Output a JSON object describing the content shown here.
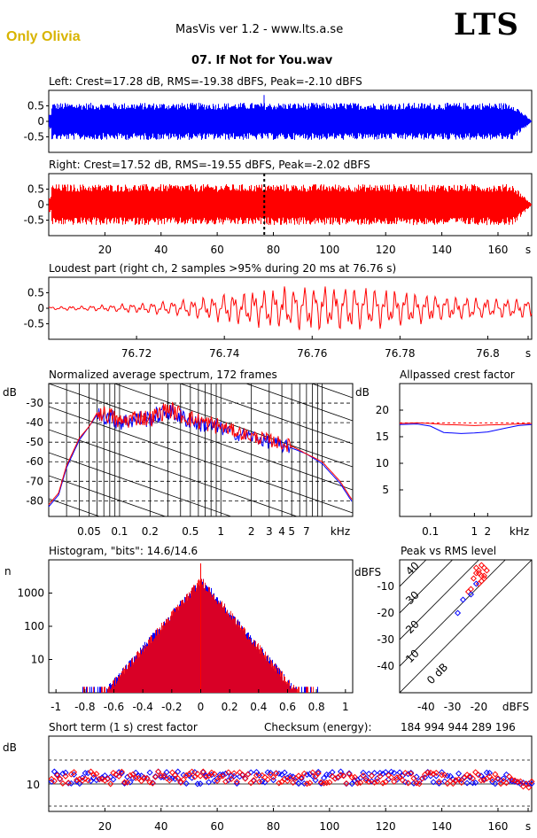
{
  "header": {
    "profile_label": "Only Olivia",
    "app_title": "MasVis ver 1.2 - www.lts.a.se",
    "logo_text": "LTS",
    "track_title": "07. If Not for You.wav"
  },
  "colors": {
    "left": "#0000ff",
    "right": "#ff0000",
    "grid": "#000000",
    "logo_yellow": "#d8b400"
  },
  "chart_data": [
    {
      "id": "left-waveform",
      "type": "line",
      "title": "Left: Crest=17.28 dB, RMS=-19.38 dBFS, Peak=-2.10 dBFS",
      "yticks": [
        "0.5",
        "0",
        "-0.5"
      ],
      "ylim": [
        -1,
        1
      ],
      "xlim": [
        0,
        172
      ],
      "series": [
        {
          "color": "#0000ff",
          "amplitude_envelope": 0.5,
          "peak": 0.78
        }
      ]
    },
    {
      "id": "right-waveform",
      "type": "line",
      "title": "Right: Crest=17.52 dB, RMS=-19.55 dBFS, Peak=-2.02 dBFS",
      "yticks": [
        "0.5",
        "0",
        "-0.5"
      ],
      "ylim": [
        -1,
        1
      ],
      "xlim": [
        0,
        172
      ],
      "xticks": [
        "20",
        "40",
        "60",
        "80",
        "100",
        "120",
        "140",
        "160",
        "s"
      ],
      "loudest_marker_time": 76.76,
      "series": [
        {
          "color": "#ff0000",
          "amplitude_envelope": 0.55,
          "peak": 0.79
        }
      ]
    },
    {
      "id": "loudest-part",
      "type": "line",
      "title": "Loudest part (right ch, 2 samples >95% during 20 ms at 76.76 s)",
      "yticks": [
        "0.5",
        "0",
        "-0.5"
      ],
      "ylim": [
        -1,
        1
      ],
      "xlim": [
        76.7,
        76.81
      ],
      "xticks": [
        "76.72",
        "76.74",
        "76.76",
        "76.78",
        "76.8",
        "s"
      ],
      "series": [
        {
          "color": "#ff0000"
        }
      ]
    },
    {
      "id": "avg-spectrum",
      "type": "line",
      "title": "Normalized average spectrum, 172 frames",
      "ylabel": "dB",
      "yticks": [
        "-30",
        "-40",
        "-50",
        "-60",
        "-70",
        "-80"
      ],
      "ylim": [
        -88,
        -20
      ],
      "xticks": [
        "0.05",
        "0.1",
        "0.2",
        "0.5",
        "1",
        "2",
        "3",
        "4",
        "5",
        "7",
        "kHz"
      ],
      "xlim_khz": [
        0.02,
        20
      ],
      "series": [
        {
          "color": "#ff0000",
          "x_khz": [
            0.02,
            0.025,
            0.03,
            0.04,
            0.05,
            0.06,
            0.08,
            0.1,
            0.15,
            0.2,
            0.3,
            0.5,
            0.7,
            1,
            1.5,
            2,
            3,
            5,
            7,
            10,
            15,
            20
          ],
          "y_db": [
            -82,
            -76,
            -62,
            -48,
            -42,
            -35,
            -36,
            -40,
            -37,
            -38,
            -33,
            -38,
            -40,
            -42,
            -45,
            -47,
            -49,
            -52,
            -56,
            -60,
            -70,
            -80
          ]
        },
        {
          "color": "#0000ff",
          "x_khz": [
            0.02,
            0.025,
            0.03,
            0.04,
            0.05,
            0.06,
            0.08,
            0.1,
            0.15,
            0.2,
            0.3,
            0.5,
            0.7,
            1,
            1.5,
            2,
            3,
            5,
            7,
            10,
            15,
            20
          ],
          "y_db": [
            -83,
            -77,
            -63,
            -49,
            -42,
            -36,
            -37,
            -40,
            -38,
            -38,
            -34,
            -39,
            -41,
            -43,
            -46,
            -47,
            -50,
            -53,
            -56,
            -61,
            -71,
            -81
          ]
        }
      ]
    },
    {
      "id": "allpassed-crest",
      "type": "line",
      "title": "Allpassed crest factor",
      "ylabel": "dB",
      "yticks": [
        "20",
        "15",
        "10",
        "5"
      ],
      "ylim": [
        0,
        25
      ],
      "xticks": [
        "0.1",
        "1",
        "2",
        "kHz"
      ],
      "series": [
        {
          "color": "#ff0000",
          "x_khz": [
            0.02,
            0.05,
            0.1,
            0.2,
            0.5,
            1,
            2,
            5,
            10,
            20
          ],
          "y_db": [
            17.5,
            17.6,
            17.5,
            17.3,
            17.2,
            17.1,
            17.2,
            17.3,
            17.4,
            17.5
          ]
        },
        {
          "color": "#0000ff",
          "x_khz": [
            0.02,
            0.05,
            0.1,
            0.2,
            0.5,
            1,
            2,
            5,
            10,
            20
          ],
          "y_db": [
            17.3,
            17.4,
            17.0,
            15.8,
            15.6,
            15.7,
            15.9,
            16.6,
            17.1,
            17.3
          ]
        }
      ]
    },
    {
      "id": "histogram",
      "type": "bar",
      "title": "Histogram, \"bits\": 14.6/14.6",
      "ylabel": "n",
      "yticks": [
        "1000",
        "100",
        "10"
      ],
      "xticks": [
        "-1",
        "-0.8",
        "-0.6",
        "-0.4",
        "-0.2",
        "0",
        "0.2",
        "0.4",
        "0.6",
        "0.8",
        "1"
      ],
      "xlim": [
        -1.05,
        1.05
      ],
      "ylog": true
    },
    {
      "id": "peak-vs-rms",
      "type": "scatter",
      "title": "Peak vs RMS level",
      "ylabel": "dBFS",
      "yticks": [
        "-10",
        "-20",
        "-30",
        "-40"
      ],
      "xticks": [
        "-40",
        "-30",
        "-20",
        "dBFS"
      ],
      "diag_labels": [
        "40",
        "30",
        "20",
        "10",
        "0 dB"
      ],
      "series": [
        {
          "color": "#ff0000",
          "x": [
            -21,
            -20,
            -19,
            -18,
            -22,
            -20,
            -19,
            -17,
            -21,
            -18,
            -20,
            -23,
            -19,
            -18,
            -24
          ],
          "y": [
            -5,
            -4,
            -6,
            -3,
            -7,
            -5,
            -8,
            -4,
            -3,
            -6,
            -9,
            -11,
            -2,
            -7,
            -12
          ]
        },
        {
          "color": "#0000ff",
          "x": [
            -26,
            -23,
            -28,
            -21
          ],
          "y": [
            -15,
            -13,
            -20,
            -9
          ]
        }
      ]
    },
    {
      "id": "short-term-crest",
      "type": "scatter",
      "title": "Short term (1 s) crest factor",
      "checksum_label": "Checksum (energy):",
      "checksum_value": "184 994 944 289 196",
      "ylabel": "dB",
      "yticks": [
        "10"
      ],
      "xticks": [
        "20",
        "40",
        "60",
        "80",
        "100",
        "120",
        "140",
        "160",
        "s"
      ],
      "xlim": [
        0,
        172
      ]
    }
  ]
}
